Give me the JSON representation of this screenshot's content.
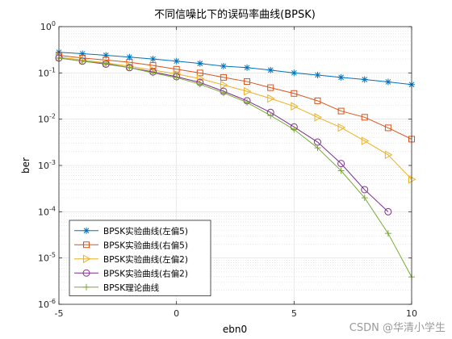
{
  "chart_data": {
    "type": "line",
    "title": "不同信噪比下的误码率曲线(BPSK)",
    "xlabel": "ebn0",
    "ylabel": "ber",
    "xscale": "linear",
    "yscale": "log",
    "xlim": [
      -5,
      10
    ],
    "ylim": [
      1e-06,
      1
    ],
    "xticks": [
      -5,
      0,
      5,
      10
    ],
    "xtick_labels": [
      "-5",
      "0",
      "5",
      "10"
    ],
    "yticks": [
      1e-06,
      1e-05,
      0.0001,
      0.001,
      0.01,
      0.1,
      1
    ],
    "ytick_labels": [
      {
        "base": "10",
        "exp": "-6"
      },
      {
        "base": "10",
        "exp": "-5"
      },
      {
        "base": "10",
        "exp": "-4"
      },
      {
        "base": "10",
        "exp": "-3"
      },
      {
        "base": "10",
        "exp": "-2"
      },
      {
        "base": "10",
        "exp": "-1"
      },
      {
        "base": "10",
        "exp": "0"
      }
    ],
    "grid": true,
    "minor_grid": true,
    "legend_position": "bottom-left",
    "x": [
      -5,
      -4,
      -3,
      -2,
      -1,
      0,
      1,
      2,
      3,
      4,
      5,
      6,
      7,
      8,
      9,
      10
    ],
    "series": [
      {
        "name": "BPSK实验曲线(左偏5)",
        "color": "#0072bd",
        "marker": "asterisk",
        "values": [
          0.28,
          0.26,
          0.24,
          0.22,
          0.2,
          0.18,
          0.16,
          0.14,
          0.13,
          0.115,
          0.1,
          0.09,
          0.08,
          0.072,
          0.064,
          0.056
        ]
      },
      {
        "name": "BPSK实验曲线(右偏5)",
        "color": "#d95319",
        "marker": "square",
        "values": [
          0.24,
          0.21,
          0.19,
          0.17,
          0.145,
          0.12,
          0.1,
          0.08,
          0.065,
          0.048,
          0.036,
          0.025,
          0.015,
          0.011,
          0.0065,
          0.0037
        ]
      },
      {
        "name": "BPSK实验曲线(左偏2)",
        "color": "#edb120",
        "marker": "triangle-right",
        "values": [
          0.22,
          0.19,
          0.165,
          0.14,
          0.115,
          0.095,
          0.075,
          0.055,
          0.04,
          0.028,
          0.019,
          0.011,
          0.0066,
          0.0034,
          0.0017,
          0.0005
        ]
      },
      {
        "name": "BPSK实验曲线(右偏2)",
        "color": "#7e2f8e",
        "marker": "circle",
        "values": [
          0.21,
          0.18,
          0.155,
          0.13,
          0.105,
          0.083,
          0.062,
          0.04,
          0.025,
          0.014,
          0.0068,
          0.0032,
          0.0011,
          0.0003,
          0.0001,
          null
        ]
      },
      {
        "name": "BPSK理论曲线",
        "color": "#77ac30",
        "marker": "plus",
        "values": [
          0.21,
          0.18,
          0.16,
          0.13,
          0.1,
          0.079,
          0.057,
          0.037,
          0.023,
          0.012,
          0.006,
          0.0024,
          0.00077,
          0.0002,
          3.4e-05,
          3.9e-06
        ]
      }
    ]
  },
  "watermark": "CSDN @华清小学生"
}
